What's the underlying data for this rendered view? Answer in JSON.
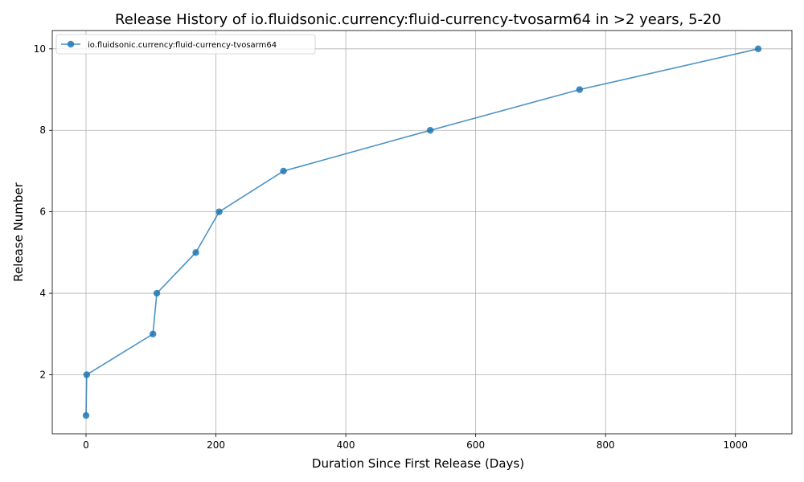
{
  "chart_data": {
    "type": "line",
    "title": "Release History of io.fluidsonic.currency:fluid-currency-tvosarm64 in >2 years, 5-20",
    "xlabel": "Duration Since First Release (Days)",
    "ylabel": "Release Number",
    "xlim": [
      -52,
      1087
    ],
    "ylim": [
      0.55,
      10.45
    ],
    "xticks": [
      0,
      200,
      400,
      600,
      800,
      1000
    ],
    "yticks": [
      2,
      4,
      6,
      8,
      10
    ],
    "grid": true,
    "legend_position": "top-left",
    "series": [
      {
        "name": "io.fluidsonic.currency:fluid-currency-tvosarm64",
        "color": "#1f77b4",
        "x": [
          0,
          1,
          103,
          109,
          169,
          205,
          304,
          530,
          760,
          1035
        ],
        "y": [
          1,
          2,
          3,
          4,
          5,
          6,
          7,
          8,
          9,
          10
        ]
      }
    ]
  }
}
